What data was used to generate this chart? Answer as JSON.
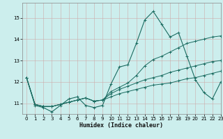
{
  "title": "",
  "xlabel": "Humidex (Indice chaleur)",
  "bg_color": "#cceeed",
  "line_color": "#1a6b60",
  "grid_color": "#b8b8b8",
  "xlim": [
    -0.5,
    23
  ],
  "ylim": [
    10.5,
    15.7
  ],
  "yticks": [
    11,
    12,
    13,
    14,
    15
  ],
  "xticks": [
    0,
    1,
    2,
    3,
    4,
    5,
    6,
    7,
    8,
    9,
    10,
    11,
    12,
    13,
    14,
    15,
    16,
    17,
    18,
    19,
    20,
    21,
    22,
    23
  ],
  "series": [
    [
      12.2,
      10.9,
      10.8,
      10.6,
      10.9,
      11.2,
      11.3,
      10.9,
      10.8,
      10.9,
      11.9,
      12.7,
      12.8,
      13.8,
      14.9,
      15.3,
      14.7,
      14.1,
      14.3,
      13.2,
      12.1,
      11.5,
      11.2,
      12.0
    ],
    [
      12.2,
      10.95,
      10.85,
      10.85,
      10.95,
      11.05,
      11.15,
      11.25,
      11.1,
      11.15,
      11.55,
      11.75,
      11.95,
      12.3,
      12.75,
      13.05,
      13.2,
      13.4,
      13.6,
      13.8,
      13.9,
      14.0,
      14.1,
      14.15
    ],
    [
      12.2,
      10.95,
      10.85,
      10.85,
      10.95,
      11.05,
      11.15,
      11.25,
      11.1,
      11.15,
      11.45,
      11.65,
      11.8,
      11.95,
      12.1,
      12.2,
      12.3,
      12.45,
      12.55,
      12.65,
      12.75,
      12.85,
      12.95,
      13.0
    ],
    [
      12.2,
      10.95,
      10.85,
      10.85,
      10.95,
      11.05,
      11.15,
      11.25,
      11.1,
      11.15,
      11.3,
      11.45,
      11.55,
      11.65,
      11.75,
      11.85,
      11.9,
      11.95,
      12.05,
      12.15,
      12.2,
      12.3,
      12.4,
      12.5
    ]
  ]
}
